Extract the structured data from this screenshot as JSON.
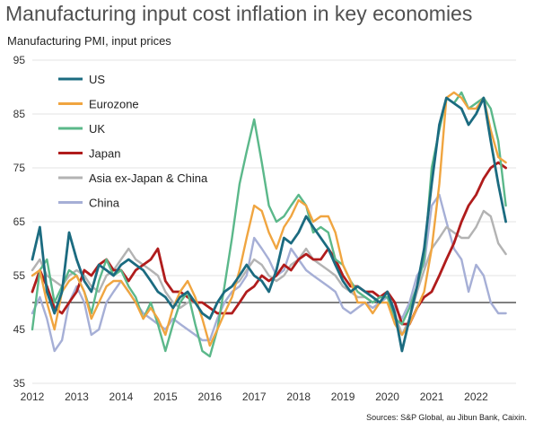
{
  "chart_data": {
    "type": "line",
    "title": "Manufacturing input cost inflation in key economies",
    "ylabel": "Manufacturing PMI, input prices",
    "source": "Sources: S&P Global,  au Jibun Bank, Caixin.",
    "ylim": [
      35,
      95
    ],
    "yticks": [
      "35",
      "45",
      "55",
      "65",
      "75",
      "85",
      "95"
    ],
    "xticks": [
      "2012",
      "2013",
      "2014",
      "2015",
      "2016",
      "2017",
      "2018",
      "2019",
      "2020",
      "2021",
      "2022"
    ],
    "reference_line": 50,
    "grid": "horizontal",
    "legend_position": "top-left",
    "series": [
      {
        "name": "US",
        "color": "#1b6b80",
        "x": [
          2012.0,
          2012.17,
          2012.33,
          2012.5,
          2012.67,
          2012.83,
          2013.0,
          2013.17,
          2013.33,
          2013.5,
          2013.67,
          2013.83,
          2014.0,
          2014.17,
          2014.33,
          2014.5,
          2014.67,
          2014.83,
          2015.0,
          2015.17,
          2015.33,
          2015.5,
          2015.67,
          2015.83,
          2016.0,
          2016.17,
          2016.33,
          2016.5,
          2016.67,
          2016.83,
          2017.0,
          2017.17,
          2017.33,
          2017.5,
          2017.67,
          2017.83,
          2018.0,
          2018.17,
          2018.33,
          2018.5,
          2018.67,
          2018.83,
          2019.0,
          2019.17,
          2019.33,
          2019.5,
          2019.67,
          2019.83,
          2020.0,
          2020.17,
          2020.33,
          2020.5,
          2020.67,
          2020.83,
          2021.0,
          2021.17,
          2021.33,
          2021.5,
          2021.67,
          2021.83,
          2022.0,
          2022.17,
          2022.33,
          2022.5,
          2022.67
        ],
        "y": [
          58,
          64,
          52,
          48,
          52,
          63,
          58,
          54,
          52,
          57,
          56,
          55,
          57,
          58,
          57,
          56,
          54,
          52,
          51,
          49,
          51,
          52,
          50,
          48,
          47,
          50,
          52,
          53,
          55,
          57,
          55,
          54,
          52,
          56,
          62,
          61,
          63,
          66,
          64,
          62,
          60,
          57,
          54,
          52,
          53,
          52,
          51,
          50,
          52,
          48,
          41,
          47,
          53,
          60,
          72,
          83,
          88,
          87,
          86,
          83,
          85,
          88,
          80,
          72,
          65
        ]
      },
      {
        "name": "Eurozone",
        "color": "#f0a540",
        "x": [
          2012.0,
          2012.17,
          2012.33,
          2012.5,
          2012.67,
          2012.83,
          2013.0,
          2013.17,
          2013.33,
          2013.5,
          2013.67,
          2013.83,
          2014.0,
          2014.17,
          2014.33,
          2014.5,
          2014.67,
          2014.83,
          2015.0,
          2015.17,
          2015.33,
          2015.5,
          2015.67,
          2015.83,
          2016.0,
          2016.17,
          2016.33,
          2016.5,
          2016.67,
          2016.83,
          2017.0,
          2017.17,
          2017.33,
          2017.5,
          2017.67,
          2017.83,
          2018.0,
          2018.17,
          2018.33,
          2018.5,
          2018.67,
          2018.83,
          2019.0,
          2019.17,
          2019.33,
          2019.5,
          2019.67,
          2019.83,
          2020.0,
          2020.17,
          2020.33,
          2020.5,
          2020.67,
          2020.83,
          2021.0,
          2021.17,
          2021.33,
          2021.5,
          2021.67,
          2021.83,
          2022.0,
          2022.17,
          2022.33,
          2022.5,
          2022.67
        ],
        "y": [
          55,
          56,
          50,
          45,
          52,
          54,
          55,
          52,
          47,
          50,
          53,
          54,
          54,
          52,
          50,
          47,
          49,
          47,
          44,
          49,
          52,
          54,
          51,
          47,
          42,
          45,
          48,
          51,
          56,
          62,
          68,
          67,
          63,
          60,
          64,
          66,
          69,
          68,
          65,
          66,
          66,
          63,
          57,
          54,
          50,
          50,
          48,
          50,
          50,
          46,
          44,
          46,
          49,
          52,
          60,
          72,
          88,
          89,
          88,
          86,
          86,
          88,
          82,
          77,
          76
        ]
      },
      {
        "name": "UK",
        "color": "#5bb88a",
        "x": [
          2012.0,
          2012.17,
          2012.33,
          2012.5,
          2012.67,
          2012.83,
          2013.0,
          2013.17,
          2013.33,
          2013.5,
          2013.67,
          2013.83,
          2014.0,
          2014.17,
          2014.33,
          2014.5,
          2014.67,
          2014.83,
          2015.0,
          2015.17,
          2015.33,
          2015.5,
          2015.67,
          2015.83,
          2016.0,
          2016.17,
          2016.33,
          2016.5,
          2016.67,
          2016.83,
          2017.0,
          2017.17,
          2017.33,
          2017.5,
          2017.67,
          2017.83,
          2018.0,
          2018.17,
          2018.33,
          2018.5,
          2018.67,
          2018.83,
          2019.0,
          2019.17,
          2019.33,
          2019.5,
          2019.67,
          2019.83,
          2020.0,
          2020.17,
          2020.33,
          2020.5,
          2020.67,
          2020.83,
          2021.0,
          2021.17,
          2021.33,
          2021.5,
          2021.67,
          2021.83,
          2022.0,
          2022.17,
          2022.33,
          2022.5,
          2022.67
        ],
        "y": [
          45,
          56,
          58,
          50,
          53,
          56,
          55,
          52,
          48,
          54,
          58,
          55,
          56,
          53,
          51,
          47,
          50,
          46,
          41,
          46,
          50,
          52,
          46,
          41,
          40,
          45,
          53,
          62,
          72,
          78,
          84,
          76,
          68,
          65,
          66,
          68,
          70,
          68,
          63,
          64,
          63,
          58,
          57,
          54,
          52,
          51,
          50,
          51,
          51,
          47,
          46,
          49,
          53,
          58,
          75,
          82,
          88,
          87,
          89,
          86,
          87,
          88,
          86,
          80,
          68
        ]
      },
      {
        "name": "Japan",
        "color": "#b01c1c",
        "x": [
          2012.0,
          2012.17,
          2012.33,
          2012.5,
          2012.67,
          2012.83,
          2013.0,
          2013.17,
          2013.33,
          2013.5,
          2013.67,
          2013.83,
          2014.0,
          2014.17,
          2014.33,
          2014.5,
          2014.67,
          2014.83,
          2015.0,
          2015.17,
          2015.33,
          2015.5,
          2015.67,
          2015.83,
          2016.0,
          2016.17,
          2016.33,
          2016.5,
          2016.67,
          2016.83,
          2017.0,
          2017.17,
          2017.33,
          2017.5,
          2017.67,
          2017.83,
          2018.0,
          2018.17,
          2018.33,
          2018.5,
          2018.67,
          2018.83,
          2019.0,
          2019.17,
          2019.33,
          2019.5,
          2019.67,
          2019.83,
          2020.0,
          2020.17,
          2020.33,
          2020.5,
          2020.67,
          2020.83,
          2021.0,
          2021.17,
          2021.33,
          2021.5,
          2021.67,
          2021.83,
          2022.0,
          2022.17,
          2022.33,
          2022.5,
          2022.67
        ],
        "y": [
          52,
          56,
          53,
          49,
          48,
          50,
          52,
          56,
          55,
          57,
          58,
          56,
          56,
          54,
          56,
          57,
          58,
          60,
          54,
          52,
          52,
          51,
          50,
          50,
          49,
          48,
          48,
          48,
          50,
          52,
          53,
          55,
          54,
          55,
          57,
          56,
          58,
          59,
          58,
          58,
          60,
          58,
          55,
          53,
          53,
          52,
          52,
          51,
          52,
          50,
          46,
          46,
          49,
          51,
          52,
          55,
          58,
          61,
          65,
          68,
          70,
          73,
          75,
          76,
          75
        ]
      },
      {
        "name": "Asia ex-Japan & China",
        "color": "#b3b3b3",
        "x": [
          2012.0,
          2012.17,
          2012.33,
          2012.5,
          2012.67,
          2012.83,
          2013.0,
          2013.17,
          2013.33,
          2013.5,
          2013.67,
          2013.83,
          2014.0,
          2014.17,
          2014.33,
          2014.5,
          2014.67,
          2014.83,
          2015.0,
          2015.17,
          2015.33,
          2015.5,
          2015.67,
          2015.83,
          2016.0,
          2016.17,
          2016.33,
          2016.5,
          2016.67,
          2016.83,
          2017.0,
          2017.17,
          2017.33,
          2017.5,
          2017.67,
          2017.83,
          2018.0,
          2018.17,
          2018.33,
          2018.5,
          2018.67,
          2018.83,
          2019.0,
          2019.17,
          2019.33,
          2019.5,
          2019.67,
          2019.83,
          2020.0,
          2020.17,
          2020.33,
          2020.5,
          2020.67,
          2020.83,
          2021.0,
          2021.17,
          2021.33,
          2021.5,
          2021.67,
          2021.83,
          2022.0,
          2022.17,
          2022.33,
          2022.5,
          2022.67
        ],
        "y": [
          56,
          58,
          55,
          54,
          53,
          55,
          56,
          55,
          53,
          52,
          55,
          56,
          58,
          60,
          58,
          57,
          56,
          55,
          52,
          50,
          49,
          50,
          50,
          48,
          47,
          50,
          52,
          53,
          54,
          56,
          58,
          57,
          55,
          54,
          55,
          57,
          58,
          60,
          58,
          57,
          56,
          55,
          53,
          52,
          51,
          51,
          50,
          51,
          52,
          48,
          44,
          47,
          52,
          56,
          60,
          62,
          64,
          63,
          62,
          62,
          64,
          67,
          66,
          61,
          59
        ]
      },
      {
        "name": "China",
        "color": "#a6afd6",
        "x": [
          2012.0,
          2012.17,
          2012.33,
          2012.5,
          2012.67,
          2012.83,
          2013.0,
          2013.17,
          2013.33,
          2013.5,
          2013.67,
          2013.83,
          2014.0,
          2014.17,
          2014.33,
          2014.5,
          2014.67,
          2014.83,
          2015.0,
          2015.17,
          2015.33,
          2015.5,
          2015.67,
          2015.83,
          2016.0,
          2016.17,
          2016.33,
          2016.5,
          2016.67,
          2016.83,
          2017.0,
          2017.17,
          2017.33,
          2017.5,
          2017.67,
          2017.83,
          2018.0,
          2018.17,
          2018.33,
          2018.5,
          2018.67,
          2018.83,
          2019.0,
          2019.17,
          2019.33,
          2019.5,
          2019.67,
          2019.83,
          2020.0,
          2020.17,
          2020.33,
          2020.5,
          2020.67,
          2020.83,
          2021.0,
          2021.17,
          2021.33,
          2021.5,
          2021.67,
          2021.83,
          2022.0,
          2022.17,
          2022.33,
          2022.5,
          2022.67
        ],
        "y": [
          48,
          51,
          47,
          41,
          43,
          50,
          53,
          50,
          44,
          45,
          50,
          52,
          54,
          52,
          50,
          48,
          47,
          46,
          45,
          47,
          46,
          45,
          44,
          43,
          43,
          47,
          50,
          52,
          53,
          55,
          62,
          60,
          58,
          55,
          56,
          60,
          58,
          56,
          55,
          54,
          53,
          52,
          49,
          48,
          49,
          50,
          49,
          50,
          51,
          49,
          47,
          50,
          55,
          57,
          68,
          70,
          65,
          60,
          58,
          52,
          57,
          55,
          50,
          48,
          48
        ]
      }
    ]
  }
}
